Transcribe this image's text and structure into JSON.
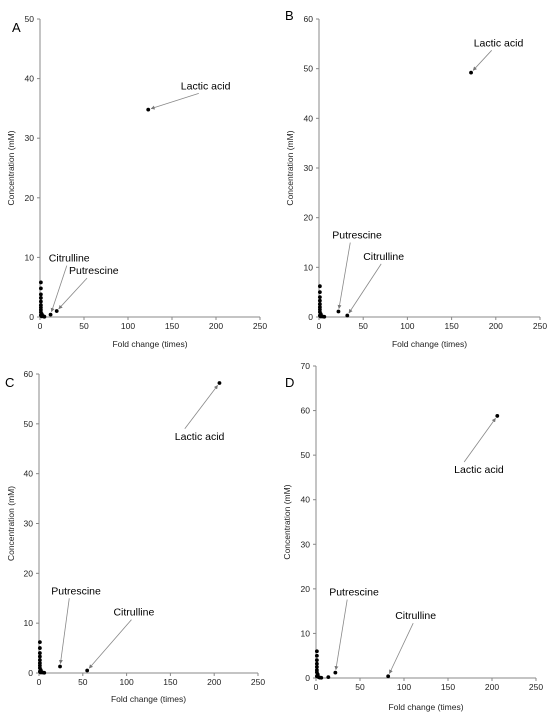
{
  "chart_data": [
    {
      "panel": "A",
      "type": "scatter",
      "xlabel": "Fold change (times)",
      "ylabel": "Concentration (mM)",
      "xlim": [
        0,
        250
      ],
      "ylim": [
        0,
        50
      ],
      "xticks": [
        0,
        50,
        100,
        150,
        200,
        250
      ],
      "yticks": [
        0,
        10,
        20,
        30,
        40,
        50
      ],
      "points": [
        {
          "x": 123,
          "y": 34.8
        },
        {
          "x": 19,
          "y": 1.0
        },
        {
          "x": 12,
          "y": 0.4
        },
        {
          "x": 1,
          "y": 5.8
        },
        {
          "x": 1,
          "y": 4.8
        },
        {
          "x": 1,
          "y": 3.8
        },
        {
          "x": 1,
          "y": 3.2
        },
        {
          "x": 1,
          "y": 2.6
        },
        {
          "x": 1,
          "y": 2.0
        },
        {
          "x": 1,
          "y": 1.6
        },
        {
          "x": 1,
          "y": 1.2
        },
        {
          "x": 1,
          "y": 0.8
        },
        {
          "x": 2,
          "y": 0.5
        },
        {
          "x": 1,
          "y": 0.3
        },
        {
          "x": 3,
          "y": 0.2
        },
        {
          "x": 4,
          "y": 0.1
        },
        {
          "x": 2,
          "y": 0.1
        },
        {
          "x": 5,
          "y": 0.05
        }
      ],
      "annotations": [
        {
          "text": "Lactic acid",
          "target": [
            123,
            34.8
          ],
          "label_at": [
            160,
            38.2
          ],
          "align": "start"
        },
        {
          "text": "Citrulline",
          "target": [
            12,
            0.4
          ],
          "label_at": [
            10,
            9.3
          ],
          "align": "start"
        },
        {
          "text": "Putrescine",
          "target": [
            19,
            1.0
          ],
          "label_at": [
            33,
            7.2
          ],
          "align": "start"
        }
      ]
    },
    {
      "panel": "B",
      "type": "scatter",
      "xlabel": "Fold change (times)",
      "ylabel": "Concentration (mM)",
      "xlim": [
        0,
        250
      ],
      "ylim": [
        0,
        60
      ],
      "xticks": [
        0,
        50,
        100,
        150,
        200,
        250
      ],
      "yticks": [
        0,
        10,
        20,
        30,
        40,
        50,
        60
      ],
      "points": [
        {
          "x": 172,
          "y": 49.2
        },
        {
          "x": 22,
          "y": 1.1
        },
        {
          "x": 32,
          "y": 0.3
        },
        {
          "x": 1,
          "y": 6.2
        },
        {
          "x": 1,
          "y": 5.0
        },
        {
          "x": 1,
          "y": 4.0
        },
        {
          "x": 1,
          "y": 3.3
        },
        {
          "x": 1,
          "y": 2.6
        },
        {
          "x": 1,
          "y": 2.0
        },
        {
          "x": 1,
          "y": 1.5
        },
        {
          "x": 1,
          "y": 1.0
        },
        {
          "x": 2,
          "y": 0.6
        },
        {
          "x": 1,
          "y": 0.3
        },
        {
          "x": 3,
          "y": 0.2
        },
        {
          "x": 4,
          "y": 0.1
        },
        {
          "x": 2,
          "y": 0.1
        },
        {
          "x": 6,
          "y": 0.05
        }
      ],
      "annotations": [
        {
          "text": "Lactic acid",
          "target": [
            172,
            49.2
          ],
          "label_at": [
            175,
            54.5
          ],
          "align": "start"
        },
        {
          "text": "Putrescine",
          "target": [
            22,
            1.1
          ],
          "label_at": [
            15,
            15.8
          ],
          "align": "start"
        },
        {
          "text": "Citrulline",
          "target": [
            32,
            0.3
          ],
          "label_at": [
            50,
            11.5
          ],
          "align": "start"
        }
      ]
    },
    {
      "panel": "C",
      "type": "scatter",
      "xlabel": "Fold change (times)",
      "ylabel": "Concentration (mM)",
      "xlim": [
        0,
        250
      ],
      "ylim": [
        0,
        60
      ],
      "xticks": [
        0,
        50,
        100,
        150,
        200,
        250
      ],
      "yticks": [
        0,
        10,
        20,
        30,
        40,
        50,
        60
      ],
      "points": [
        {
          "x": 206,
          "y": 58.2
        },
        {
          "x": 24,
          "y": 1.3
        },
        {
          "x": 55,
          "y": 0.5
        },
        {
          "x": 1,
          "y": 6.2
        },
        {
          "x": 1,
          "y": 5.0
        },
        {
          "x": 1,
          "y": 4.0
        },
        {
          "x": 1,
          "y": 3.3
        },
        {
          "x": 1,
          "y": 2.6
        },
        {
          "x": 1,
          "y": 2.0
        },
        {
          "x": 1,
          "y": 1.5
        },
        {
          "x": 1,
          "y": 1.0
        },
        {
          "x": 2,
          "y": 0.6
        },
        {
          "x": 1,
          "y": 0.3
        },
        {
          "x": 3,
          "y": 0.2
        },
        {
          "x": 4,
          "y": 0.1
        },
        {
          "x": 2,
          "y": 0.1
        },
        {
          "x": 6,
          "y": 0.05
        }
      ],
      "annotations": [
        {
          "text": "Lactic acid",
          "target": [
            206,
            58.2
          ],
          "label_at": [
            155,
            46.8
          ],
          "align": "start"
        },
        {
          "text": "Putrescine",
          "target": [
            24,
            1.3
          ],
          "label_at": [
            14,
            15.8
          ],
          "align": "start"
        },
        {
          "text": "Citrulline",
          "target": [
            55,
            0.5
          ],
          "label_at": [
            85,
            11.5
          ],
          "align": "start"
        }
      ]
    },
    {
      "panel": "D",
      "type": "scatter",
      "xlabel": "Fold change (times)",
      "ylabel": "Concentration (mM)",
      "xlim": [
        0,
        250
      ],
      "ylim": [
        0,
        70
      ],
      "xticks": [
        0,
        50,
        100,
        150,
        200,
        250
      ],
      "yticks": [
        0,
        10,
        20,
        30,
        40,
        50,
        60,
        70
      ],
      "points": [
        {
          "x": 206,
          "y": 58.8
        },
        {
          "x": 22,
          "y": 1.2
        },
        {
          "x": 82,
          "y": 0.4
        },
        {
          "x": 14,
          "y": 0.2
        },
        {
          "x": 1,
          "y": 6.0
        },
        {
          "x": 1,
          "y": 5.0
        },
        {
          "x": 1,
          "y": 4.0
        },
        {
          "x": 1,
          "y": 3.2
        },
        {
          "x": 1,
          "y": 2.5
        },
        {
          "x": 1,
          "y": 1.8
        },
        {
          "x": 1,
          "y": 1.3
        },
        {
          "x": 2,
          "y": 0.8
        },
        {
          "x": 1,
          "y": 0.4
        },
        {
          "x": 3,
          "y": 0.2
        },
        {
          "x": 4,
          "y": 0.1
        },
        {
          "x": 6,
          "y": 0.05
        }
      ],
      "annotations": [
        {
          "text": "Lactic acid",
          "target": [
            206,
            58.8
          ],
          "label_at": [
            157,
            46.0
          ],
          "align": "start"
        },
        {
          "text": "Putrescine",
          "target": [
            22,
            1.2
          ],
          "label_at": [
            15,
            18.5
          ],
          "align": "start"
        },
        {
          "text": "Citrulline",
          "target": [
            82,
            0.4
          ],
          "label_at": [
            90,
            13.2
          ],
          "align": "start"
        }
      ]
    }
  ]
}
